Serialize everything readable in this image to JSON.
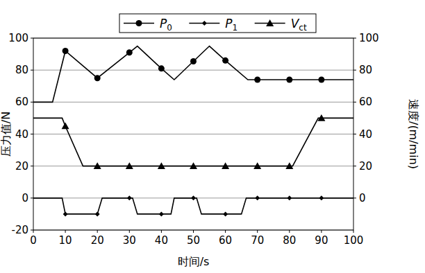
{
  "chart_data": {
    "type": "line",
    "x_label": "时间/s",
    "y_label": "压力值/N",
    "y2_label": "速度/(m/min)",
    "xlim": [
      0,
      100
    ],
    "xticks": [
      0,
      10,
      20,
      30,
      40,
      50,
      60,
      70,
      80,
      90,
      100
    ],
    "ylim": [
      -20,
      100
    ],
    "yticks": [
      -20,
      0,
      20,
      40,
      60,
      80,
      100
    ],
    "y2lim": [
      -20,
      100
    ],
    "y2ticks": [
      0,
      20,
      40,
      60,
      80,
      100
    ],
    "grid": true,
    "legend": "top",
    "series": [
      {
        "name": "P0",
        "color": "#000000",
        "marker": "circle",
        "x": [
          0,
          6,
          10,
          20,
          30,
          32.5,
          40,
          44,
          50,
          55,
          60,
          67,
          70,
          80,
          90,
          100
        ],
        "values": [
          60,
          60,
          92,
          75,
          91,
          95,
          81,
          74,
          85.5,
          95,
          86,
          74,
          74,
          74,
          74,
          74
        ]
      },
      {
        "name": "P1",
        "color": "#000000",
        "marker": "diamond",
        "x": [
          0,
          9,
          10,
          20,
          21.5,
          30,
          31,
          32.5,
          40,
          43,
          44,
          50,
          51,
          52.5,
          60,
          65,
          66.5,
          70,
          80,
          90,
          100
        ],
        "values": [
          0,
          0,
          -10,
          -10,
          0,
          0,
          0,
          -10,
          -10,
          -10,
          0,
          0,
          0,
          -10,
          -10,
          -10,
          0,
          0,
          0,
          0,
          0
        ]
      },
      {
        "name": "Vct",
        "color": "#000000",
        "marker": "triangle",
        "axis": "y2",
        "x": [
          0,
          9,
          10,
          15.5,
          20,
          30,
          40,
          50,
          60,
          70,
          80,
          81,
          89,
          90,
          100
        ],
        "values": [
          50,
          50,
          45,
          20,
          20,
          20,
          20,
          20,
          20,
          20,
          20,
          20,
          50,
          50,
          50
        ]
      }
    ]
  }
}
